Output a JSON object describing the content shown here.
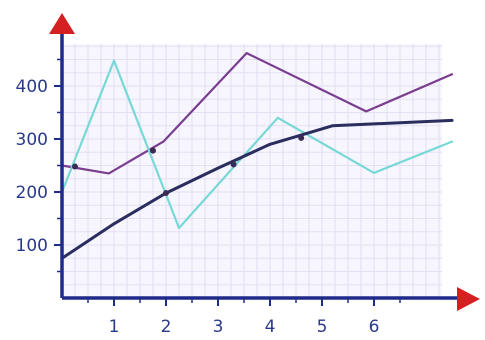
{
  "chart_data": {
    "type": "line",
    "title": "",
    "xlabel": "",
    "ylabel": "",
    "xlim": [
      0,
      8
    ],
    "ylim": [
      0,
      540
    ],
    "grid": true,
    "x_ticks": [
      1,
      2,
      3,
      4,
      5,
      6
    ],
    "y_ticks": [
      100,
      200,
      300,
      400
    ],
    "series": [
      {
        "color": "#7a3d8f",
        "x": [
          0,
          0.9,
          1.95,
          3.55,
          5.85,
          7.5
        ],
        "y": [
          250,
          235,
          295,
          462,
          352,
          422
        ]
      },
      {
        "color": "#77d8d8",
        "x": [
          0,
          1.0,
          2.25,
          4.15,
          6.0,
          7.5
        ],
        "y": [
          200,
          448,
          132,
          340,
          236,
          295
        ]
      },
      {
        "color": "#2a2d5e",
        "x": [
          0,
          1.0,
          2.0,
          3.0,
          4.0,
          5.2,
          7.5
        ],
        "y": [
          75,
          140,
          198,
          245,
          290,
          325,
          335
        ]
      }
    ],
    "markers": [
      {
        "series": 0,
        "x": 0.25,
        "y": 248
      },
      {
        "series": 0,
        "x": 1.75,
        "y": 278
      },
      {
        "series": 2,
        "x": 2.0,
        "y": 198
      },
      {
        "series": 2,
        "x": 3.3,
        "y": 252
      },
      {
        "series": 2,
        "x": 4.6,
        "y": 302
      }
    ]
  },
  "theme": {
    "axis_color": "#1f2a8a",
    "arrow_color": "#d42020",
    "grid_color": "#e3e0f3",
    "plot_background": "#f7f5fd",
    "label_color": "#2a3a8a"
  }
}
